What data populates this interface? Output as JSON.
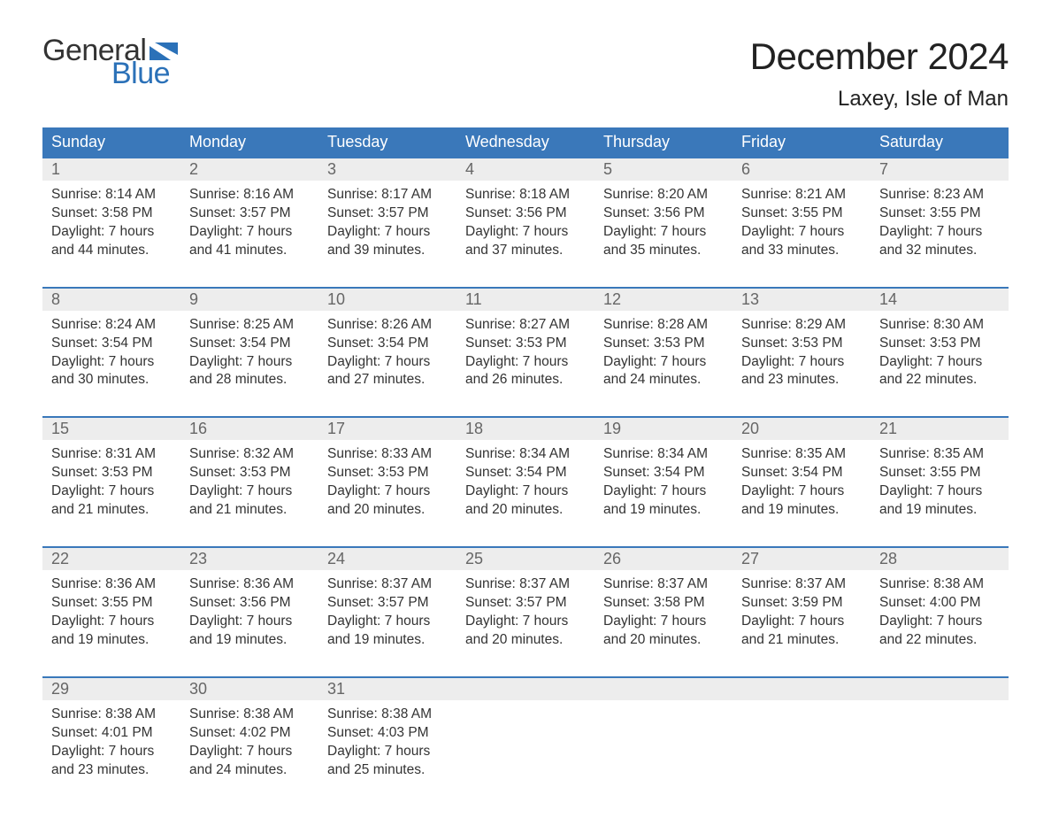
{
  "brand": {
    "word1": "General",
    "word2": "Blue",
    "word1_color": "#333333",
    "word2_color": "#2b71b8",
    "flag_color": "#2b71b8"
  },
  "title": "December 2024",
  "location": "Laxey, Isle of Man",
  "colors": {
    "header_bg": "#3a78ba",
    "header_text": "#ffffff",
    "daynum_bg": "#ededed",
    "daynum_text": "#666666",
    "body_text": "#333333",
    "week_border": "#3a78ba",
    "page_bg": "#ffffff"
  },
  "typography": {
    "title_fontsize": 42,
    "location_fontsize": 24,
    "dayhead_fontsize": 18,
    "daynum_fontsize": 18,
    "cell_fontsize": 15.5
  },
  "day_names": [
    "Sunday",
    "Monday",
    "Tuesday",
    "Wednesday",
    "Thursday",
    "Friday",
    "Saturday"
  ],
  "weeks": [
    [
      {
        "n": "1",
        "sunrise": "8:14 AM",
        "sunset": "3:58 PM",
        "dl1": "Daylight: 7 hours",
        "dl2": "and 44 minutes."
      },
      {
        "n": "2",
        "sunrise": "8:16 AM",
        "sunset": "3:57 PM",
        "dl1": "Daylight: 7 hours",
        "dl2": "and 41 minutes."
      },
      {
        "n": "3",
        "sunrise": "8:17 AM",
        "sunset": "3:57 PM",
        "dl1": "Daylight: 7 hours",
        "dl2": "and 39 minutes."
      },
      {
        "n": "4",
        "sunrise": "8:18 AM",
        "sunset": "3:56 PM",
        "dl1": "Daylight: 7 hours",
        "dl2": "and 37 minutes."
      },
      {
        "n": "5",
        "sunrise": "8:20 AM",
        "sunset": "3:56 PM",
        "dl1": "Daylight: 7 hours",
        "dl2": "and 35 minutes."
      },
      {
        "n": "6",
        "sunrise": "8:21 AM",
        "sunset": "3:55 PM",
        "dl1": "Daylight: 7 hours",
        "dl2": "and 33 minutes."
      },
      {
        "n": "7",
        "sunrise": "8:23 AM",
        "sunset": "3:55 PM",
        "dl1": "Daylight: 7 hours",
        "dl2": "and 32 minutes."
      }
    ],
    [
      {
        "n": "8",
        "sunrise": "8:24 AM",
        "sunset": "3:54 PM",
        "dl1": "Daylight: 7 hours",
        "dl2": "and 30 minutes."
      },
      {
        "n": "9",
        "sunrise": "8:25 AM",
        "sunset": "3:54 PM",
        "dl1": "Daylight: 7 hours",
        "dl2": "and 28 minutes."
      },
      {
        "n": "10",
        "sunrise": "8:26 AM",
        "sunset": "3:54 PM",
        "dl1": "Daylight: 7 hours",
        "dl2": "and 27 minutes."
      },
      {
        "n": "11",
        "sunrise": "8:27 AM",
        "sunset": "3:53 PM",
        "dl1": "Daylight: 7 hours",
        "dl2": "and 26 minutes."
      },
      {
        "n": "12",
        "sunrise": "8:28 AM",
        "sunset": "3:53 PM",
        "dl1": "Daylight: 7 hours",
        "dl2": "and 24 minutes."
      },
      {
        "n": "13",
        "sunrise": "8:29 AM",
        "sunset": "3:53 PM",
        "dl1": "Daylight: 7 hours",
        "dl2": "and 23 minutes."
      },
      {
        "n": "14",
        "sunrise": "8:30 AM",
        "sunset": "3:53 PM",
        "dl1": "Daylight: 7 hours",
        "dl2": "and 22 minutes."
      }
    ],
    [
      {
        "n": "15",
        "sunrise": "8:31 AM",
        "sunset": "3:53 PM",
        "dl1": "Daylight: 7 hours",
        "dl2": "and 21 minutes."
      },
      {
        "n": "16",
        "sunrise": "8:32 AM",
        "sunset": "3:53 PM",
        "dl1": "Daylight: 7 hours",
        "dl2": "and 21 minutes."
      },
      {
        "n": "17",
        "sunrise": "8:33 AM",
        "sunset": "3:53 PM",
        "dl1": "Daylight: 7 hours",
        "dl2": "and 20 minutes."
      },
      {
        "n": "18",
        "sunrise": "8:34 AM",
        "sunset": "3:54 PM",
        "dl1": "Daylight: 7 hours",
        "dl2": "and 20 minutes."
      },
      {
        "n": "19",
        "sunrise": "8:34 AM",
        "sunset": "3:54 PM",
        "dl1": "Daylight: 7 hours",
        "dl2": "and 19 minutes."
      },
      {
        "n": "20",
        "sunrise": "8:35 AM",
        "sunset": "3:54 PM",
        "dl1": "Daylight: 7 hours",
        "dl2": "and 19 minutes."
      },
      {
        "n": "21",
        "sunrise": "8:35 AM",
        "sunset": "3:55 PM",
        "dl1": "Daylight: 7 hours",
        "dl2": "and 19 minutes."
      }
    ],
    [
      {
        "n": "22",
        "sunrise": "8:36 AM",
        "sunset": "3:55 PM",
        "dl1": "Daylight: 7 hours",
        "dl2": "and 19 minutes."
      },
      {
        "n": "23",
        "sunrise": "8:36 AM",
        "sunset": "3:56 PM",
        "dl1": "Daylight: 7 hours",
        "dl2": "and 19 minutes."
      },
      {
        "n": "24",
        "sunrise": "8:37 AM",
        "sunset": "3:57 PM",
        "dl1": "Daylight: 7 hours",
        "dl2": "and 19 minutes."
      },
      {
        "n": "25",
        "sunrise": "8:37 AM",
        "sunset": "3:57 PM",
        "dl1": "Daylight: 7 hours",
        "dl2": "and 20 minutes."
      },
      {
        "n": "26",
        "sunrise": "8:37 AM",
        "sunset": "3:58 PM",
        "dl1": "Daylight: 7 hours",
        "dl2": "and 20 minutes."
      },
      {
        "n": "27",
        "sunrise": "8:37 AM",
        "sunset": "3:59 PM",
        "dl1": "Daylight: 7 hours",
        "dl2": "and 21 minutes."
      },
      {
        "n": "28",
        "sunrise": "8:38 AM",
        "sunset": "4:00 PM",
        "dl1": "Daylight: 7 hours",
        "dl2": "and 22 minutes."
      }
    ],
    [
      {
        "n": "29",
        "sunrise": "8:38 AM",
        "sunset": "4:01 PM",
        "dl1": "Daylight: 7 hours",
        "dl2": "and 23 minutes."
      },
      {
        "n": "30",
        "sunrise": "8:38 AM",
        "sunset": "4:02 PM",
        "dl1": "Daylight: 7 hours",
        "dl2": "and 24 minutes."
      },
      {
        "n": "31",
        "sunrise": "8:38 AM",
        "sunset": "4:03 PM",
        "dl1": "Daylight: 7 hours",
        "dl2": "and 25 minutes."
      },
      null,
      null,
      null,
      null
    ]
  ],
  "labels": {
    "sunrise_prefix": "Sunrise: ",
    "sunset_prefix": "Sunset: "
  }
}
